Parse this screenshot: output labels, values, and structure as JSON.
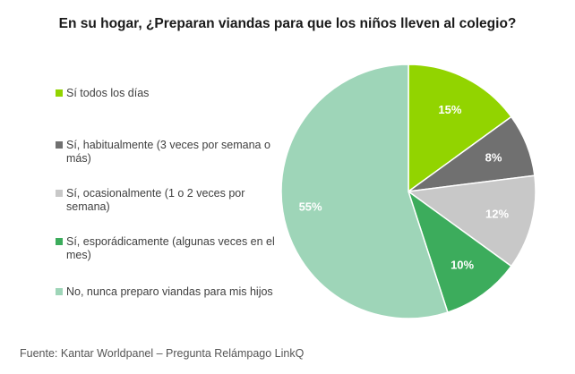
{
  "chart_data": {
    "type": "pie",
    "title": "En su hogar, ¿Preparan viandas para que los niños lleven al colegio?",
    "legend_placement": "left",
    "slices": [
      {
        "label": "Sí todos los días",
        "value": 15,
        "value_label": "15%",
        "color": "#92d400"
      },
      {
        "label": "Sí, habitualmente (3 veces por semana o más)",
        "value": 8,
        "value_label": "8%",
        "color": "#707070"
      },
      {
        "label": "Sí, ocasionalmente (1 o 2 veces por semana)",
        "value": 12,
        "value_label": "12%",
        "color": "#c8c8c8"
      },
      {
        "label": "Sí, esporádicamente (algunas veces en el mes)",
        "value": 10,
        "value_label": "10%",
        "color": "#3cac5c"
      },
      {
        "label": "No, nunca preparo viandas para mis hijos",
        "value": 55,
        "value_label": "55%",
        "color": "#9ed5b8"
      }
    ]
  },
  "source": "Fuente: Kantar Worldpanel – Pregunta Relámpago LinkQ"
}
